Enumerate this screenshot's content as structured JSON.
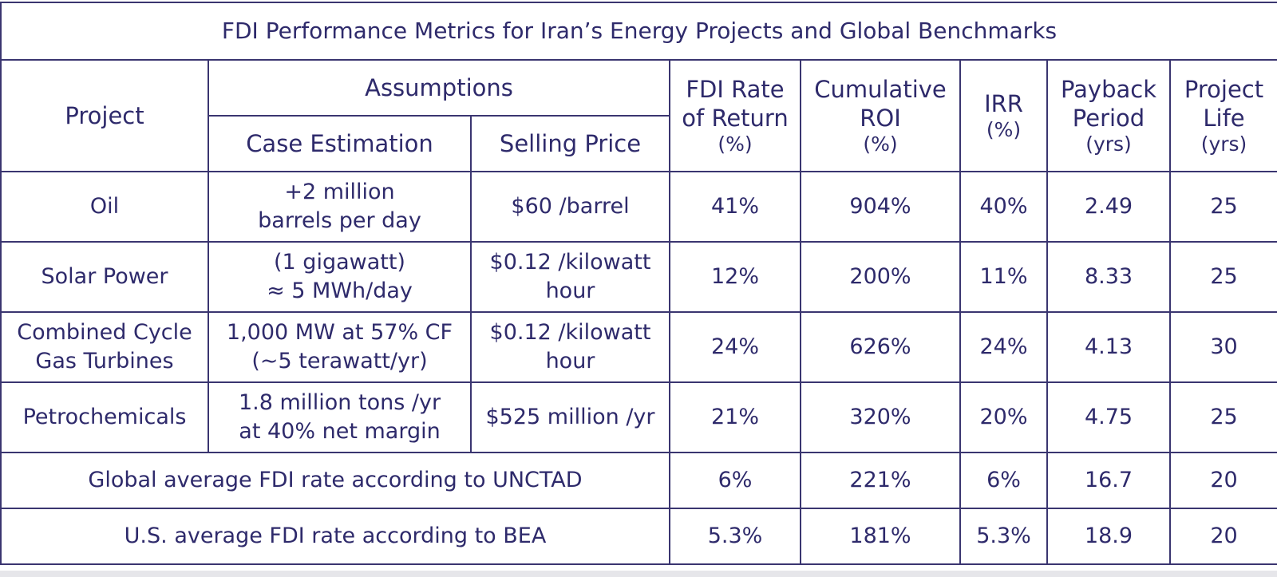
{
  "title": "FDI Performance Metrics for Iran’s Energy Projects and Global Benchmarks",
  "headers": {
    "project": "Project",
    "assumptions": "Assumptions",
    "case_estimation": "Case Estimation",
    "selling_price": "Selling Price",
    "fdi_rate": {
      "line1": "FDI Rate",
      "line2": "of Return",
      "unit": "(%)"
    },
    "cumulative_roi": {
      "line1": "Cumulative",
      "line2": "ROI",
      "unit": "(%)"
    },
    "irr": {
      "line1": "IRR",
      "unit": "(%)"
    },
    "payback": {
      "line1": "Payback",
      "line2": "Period",
      "unit": "(yrs)"
    },
    "project_life": {
      "line1": "Project",
      "line2": "Life",
      "unit": "(yrs)"
    }
  },
  "rows": [
    {
      "project": [
        "Oil"
      ],
      "case_estimation": [
        "+2 million",
        "barrels per day"
      ],
      "selling_price": [
        "$60 /barrel"
      ],
      "fdi_rate": "41%",
      "cumulative_roi": "904%",
      "irr": "40%",
      "payback": "2.49",
      "project_life": "25"
    },
    {
      "project": [
        "Solar Power"
      ],
      "case_estimation": [
        "(1 gigawatt)",
        "≈ 5 MWh/day"
      ],
      "selling_price": [
        "$0.12 /kilowatt",
        "hour"
      ],
      "fdi_rate": "12%",
      "cumulative_roi": "200%",
      "irr": "11%",
      "payback": "8.33",
      "project_life": "25"
    },
    {
      "project": [
        "Combined Cycle",
        "Gas Turbines"
      ],
      "case_estimation": [
        "1,000 MW at 57% CF",
        "(~5 terawatt/yr)"
      ],
      "selling_price": [
        "$0.12 /kilowatt",
        "hour"
      ],
      "fdi_rate": "24%",
      "cumulative_roi": "626%",
      "irr": "24%",
      "payback": "4.13",
      "project_life": "30"
    },
    {
      "project": [
        "Petrochemicals"
      ],
      "case_estimation": [
        "1.8 million tons /yr",
        "at 40% net margin"
      ],
      "selling_price": [
        "$525 million /yr"
      ],
      "fdi_rate": "21%",
      "cumulative_roi": "320%",
      "irr": "20%",
      "payback": "4.75",
      "project_life": "25"
    }
  ],
  "benchmarks": [
    {
      "label": "Global average FDI rate according to UNCTAD",
      "fdi_rate": "6%",
      "cumulative_roi": "221%",
      "irr": "6%",
      "payback": "16.7",
      "project_life": "20"
    },
    {
      "label": "U.S. average FDI rate according to BEA",
      "fdi_rate": "5.3%",
      "cumulative_roi": "181%",
      "irr": "5.3%",
      "payback": "18.9",
      "project_life": "20"
    }
  ],
  "colors": {
    "text": "#2e2a6b",
    "border": "#3a3570",
    "background": "#ffffff"
  }
}
